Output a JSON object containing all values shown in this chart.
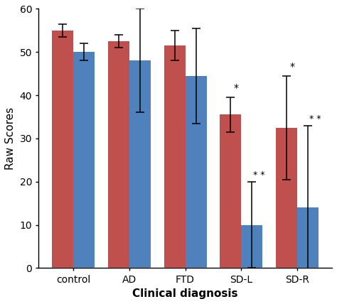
{
  "categories": [
    "control",
    "AD",
    "FTD",
    "SD-L",
    "SD-R"
  ],
  "red_values": [
    55.0,
    52.5,
    51.5,
    35.5,
    32.5
  ],
  "blue_values": [
    50.0,
    48.0,
    44.5,
    10.0,
    14.0
  ],
  "red_errors": [
    1.5,
    1.5,
    3.5,
    4.0,
    12.0
  ],
  "blue_errors": [
    2.0,
    12.0,
    11.0,
    10.0,
    19.0
  ],
  "red_color": "#C0504D",
  "blue_color": "#4F81BD",
  "ylabel": "Raw Scores",
  "xlabel": "Clinical diagnosis",
  "ylim": [
    0,
    60
  ],
  "yticks": [
    0,
    10,
    20,
    30,
    40,
    50,
    60
  ],
  "bar_width": 0.38,
  "figsize": [
    4.74,
    4.28
  ],
  "dpi": 100,
  "background_color": "#ffffff"
}
